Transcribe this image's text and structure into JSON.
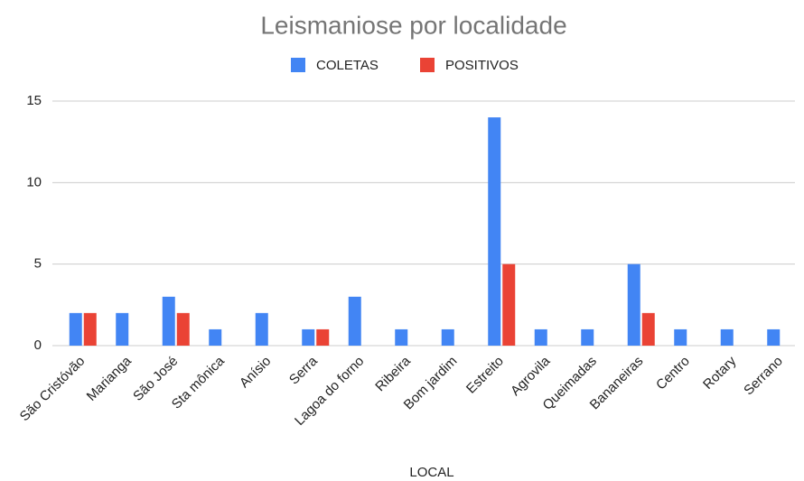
{
  "chart_data": {
    "type": "bar",
    "title": "Leismaniose por localidade",
    "x_label": "LOCAL",
    "categories": [
      "São Cristóvão",
      "Marianga",
      "São José",
      "Sta mônica",
      "Anísio",
      "Serra",
      "Lagoa do forno",
      "Ribeira",
      "Bom jardim",
      "Estreito",
      "Agrovila",
      "Queimadas",
      "Bananeiras",
      "Centro",
      "Rotary",
      "Serrano"
    ],
    "series": [
      {
        "name": "COLETAS",
        "color": "#4285f4",
        "values": [
          2,
          2,
          3,
          1,
          2,
          1,
          3,
          1,
          1,
          14,
          1,
          1,
          5,
          1,
          1,
          1
        ]
      },
      {
        "name": "POSITIVOS",
        "color": "#ea4335",
        "values": [
          2,
          null,
          2,
          null,
          null,
          1,
          null,
          null,
          null,
          5,
          null,
          null,
          2,
          null,
          null,
          null
        ]
      }
    ],
    "ylim": [
      0,
      15
    ],
    "yticks": [
      0,
      5,
      10,
      15
    ],
    "grid": true,
    "legend": "top"
  }
}
